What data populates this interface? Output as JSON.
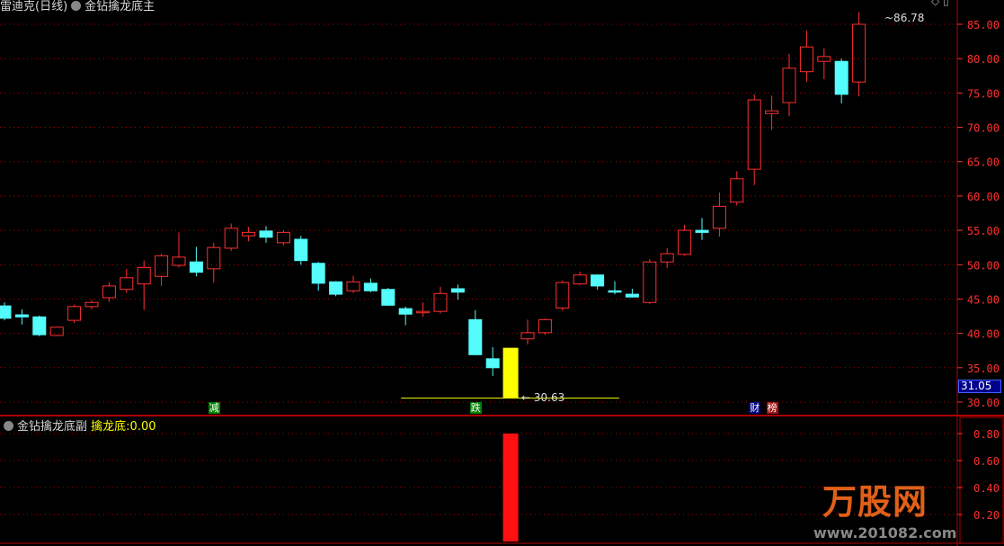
{
  "header": {
    "stock_title": "雷迪克(日线)",
    "indicator_main": "金钻擒龙底主"
  },
  "sub_header": {
    "indicator_sub": "金钻擒龙底副",
    "series_label": "擒龙底:",
    "series_value": "0.00"
  },
  "window_icons": [
    "diamond-icon",
    "restore-icon"
  ],
  "current_price_tag": "31.05",
  "annotations": {
    "high_label": "86.78",
    "low_label": "30.63"
  },
  "markers": [
    {
      "text": "减",
      "color": "#008000",
      "index": 12
    },
    {
      "text": "跌",
      "color": "#008000",
      "index": 27
    },
    {
      "text": "财",
      "color": "#000080",
      "index": 43
    },
    {
      "text": "榜",
      "color": "#a01010",
      "index": 44
    }
  ],
  "logo": {
    "text": "万股网",
    "url": "www.201082.com"
  },
  "colors": {
    "up": "#ff3030",
    "down": "#54fcfc",
    "signal": "#ffff00",
    "grid": "#b00000",
    "axis": "#ff3030"
  },
  "chart_data": [
    {
      "type": "candlestick",
      "yaxis_ticks": [
        "85.00",
        "80.00",
        "75.00",
        "70.00",
        "65.00",
        "60.00",
        "55.00",
        "50.00",
        "45.00",
        "40.00",
        "35.00",
        "30.00"
      ],
      "ylim": [
        28,
        89
      ],
      "candles": [
        {
          "o": 44.0,
          "c": 42.2,
          "h": 44.5,
          "l": 41.9
        },
        {
          "o": 42.7,
          "c": 42.4,
          "h": 43.5,
          "l": 41.3
        },
        {
          "o": 42.4,
          "c": 39.8,
          "h": 42.6,
          "l": 39.6
        },
        {
          "o": 39.7,
          "c": 40.9,
          "h": 41.0,
          "l": 39.6
        },
        {
          "o": 41.9,
          "c": 43.9,
          "h": 44.2,
          "l": 41.5
        },
        {
          "o": 43.9,
          "c": 44.5,
          "h": 44.8,
          "l": 43.5
        },
        {
          "o": 45.2,
          "c": 46.9,
          "h": 47.4,
          "l": 44.6
        },
        {
          "o": 46.4,
          "c": 48.1,
          "h": 49.4,
          "l": 45.9
        },
        {
          "o": 47.2,
          "c": 49.6,
          "h": 50.6,
          "l": 43.4
        },
        {
          "o": 48.3,
          "c": 51.3,
          "h": 51.6,
          "l": 46.9
        },
        {
          "o": 49.9,
          "c": 51.1,
          "h": 54.7,
          "l": 49.6
        },
        {
          "o": 50.4,
          "c": 48.9,
          "h": 52.6,
          "l": 48.3
        },
        {
          "o": 49.4,
          "c": 52.5,
          "h": 53.2,
          "l": 47.4
        },
        {
          "o": 52.4,
          "c": 55.3,
          "h": 56.0,
          "l": 52.0
        },
        {
          "o": 54.2,
          "c": 54.7,
          "h": 55.5,
          "l": 53.4
        },
        {
          "o": 54.9,
          "c": 54.0,
          "h": 55.6,
          "l": 53.2
        },
        {
          "o": 53.2,
          "c": 54.7,
          "h": 55.0,
          "l": 52.8
        },
        {
          "o": 53.7,
          "c": 50.6,
          "h": 54.2,
          "l": 50.0
        },
        {
          "o": 50.2,
          "c": 47.3,
          "h": 50.4,
          "l": 46.2
        },
        {
          "o": 47.5,
          "c": 45.7,
          "h": 47.6,
          "l": 45.4
        },
        {
          "o": 46.2,
          "c": 47.5,
          "h": 48.4,
          "l": 45.9
        },
        {
          "o": 47.3,
          "c": 46.2,
          "h": 48.0,
          "l": 46.0
        },
        {
          "o": 46.4,
          "c": 44.1,
          "h": 46.6,
          "l": 44.0
        },
        {
          "o": 43.6,
          "c": 42.8,
          "h": 43.9,
          "l": 41.2
        },
        {
          "o": 43.0,
          "c": 43.2,
          "h": 44.5,
          "l": 42.4
        },
        {
          "o": 43.2,
          "c": 45.8,
          "h": 46.8,
          "l": 42.9
        },
        {
          "o": 46.5,
          "c": 46.0,
          "h": 47.1,
          "l": 44.9
        },
        {
          "o": 42.0,
          "c": 36.9,
          "h": 43.4,
          "l": 36.8
        },
        {
          "o": 36.3,
          "c": 35.0,
          "h": 38.0,
          "l": 33.8
        },
        null,
        {
          "o": 39.2,
          "c": 40.1,
          "h": 42.0,
          "l": 38.4
        },
        {
          "o": 40.1,
          "c": 42.0,
          "h": 42.2,
          "l": 39.8
        },
        {
          "o": 43.7,
          "c": 47.4,
          "h": 47.7,
          "l": 43.3
        },
        {
          "o": 47.2,
          "c": 48.5,
          "h": 49.0,
          "l": 47.0
        },
        {
          "o": 48.5,
          "c": 46.9,
          "h": 48.6,
          "l": 46.4
        },
        {
          "o": 46.2,
          "c": 46.0,
          "h": 47.6,
          "l": 45.7
        },
        {
          "o": 45.7,
          "c": 45.3,
          "h": 46.5,
          "l": 45.2
        },
        {
          "o": 44.5,
          "c": 50.4,
          "h": 50.8,
          "l": 44.3
        },
        {
          "o": 50.4,
          "c": 51.6,
          "h": 52.4,
          "l": 49.5
        },
        {
          "o": 51.5,
          "c": 55.0,
          "h": 55.8,
          "l": 51.3
        },
        {
          "o": 55.0,
          "c": 54.7,
          "h": 56.8,
          "l": 53.6
        },
        {
          "o": 55.3,
          "c": 58.5,
          "h": 60.5,
          "l": 54.1
        },
        {
          "o": 59.1,
          "c": 62.5,
          "h": 63.6,
          "l": 58.6
        },
        {
          "o": 63.9,
          "c": 74.0,
          "h": 74.8,
          "l": 61.6
        },
        {
          "o": 72.0,
          "c": 72.4,
          "h": 74.6,
          "l": 69.6
        },
        {
          "o": 73.6,
          "c": 78.6,
          "h": 80.7,
          "l": 71.6
        },
        {
          "o": 78.1,
          "c": 81.7,
          "h": 84.1,
          "l": 76.6
        },
        {
          "o": 79.6,
          "c": 80.3,
          "h": 81.5,
          "l": 77.0
        },
        {
          "o": 79.6,
          "c": 74.8,
          "h": 80.0,
          "l": 73.5
        },
        {
          "o": 76.6,
          "c": 85.0,
          "h": 86.78,
          "l": 74.5
        }
      ],
      "signal_bar": {
        "index": 29,
        "from": 30.63,
        "to": 37.9
      },
      "support_line": {
        "value": 30.63,
        "from_index": 23,
        "to_index": 35
      }
    },
    {
      "type": "bar",
      "series_name": "擒龙底",
      "yaxis_ticks": [
        "0.80",
        "0.60",
        "0.40",
        "0.20"
      ],
      "ylim": [
        0,
        0.95
      ],
      "bars": [
        {
          "index": 29,
          "value": 0.8
        }
      ]
    }
  ]
}
